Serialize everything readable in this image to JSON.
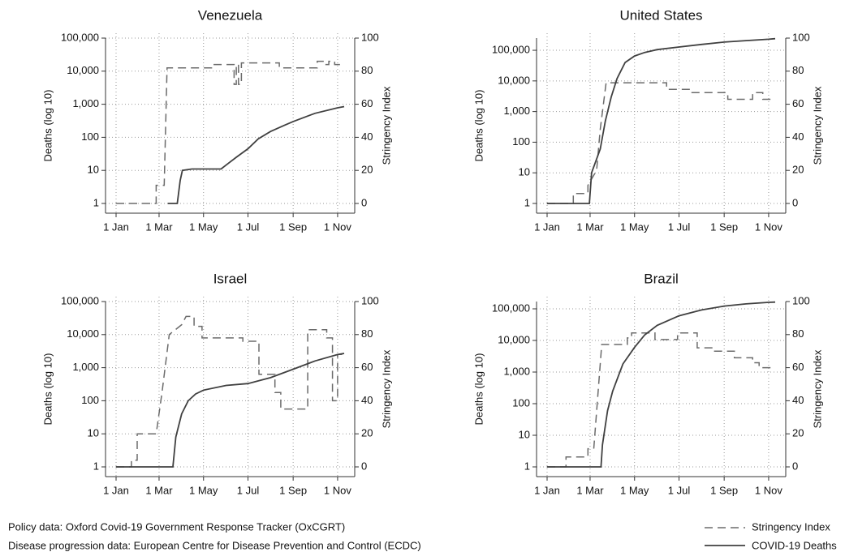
{
  "chart_data": [
    {
      "type": "line",
      "title": "Venezuela",
      "ylabel": "Deaths (log 10)",
      "y2label": "Stringency Index",
      "ylog": true,
      "grid": true,
      "xlim": [
        "1 Jan",
        "10 Nov"
      ],
      "xticks": [
        "1 Jan",
        "1 Mar",
        "1 May",
        "1 Jul",
        "1 Sep",
        "1 Nov"
      ],
      "ylim": [
        1,
        100000
      ],
      "yticks": [
        1,
        10,
        100,
        {
          "value": 1000,
          "label": "1,000"
        },
        {
          "value": 10000,
          "label": "10,000"
        },
        {
          "value": 100000,
          "label": "100,000"
        }
      ],
      "y2lim": [
        0,
        100
      ],
      "y2ticks": [
        0,
        20,
        40,
        60,
        80,
        100
      ],
      "series": [
        {
          "name": "Stringency Index",
          "color": "#6b6b6b",
          "dashed": true,
          "axis": "y2",
          "x": [
            "1 Jan",
            "25 Feb",
            "25 Feb",
            "8 Mar",
            "12 Mar",
            "12 May",
            "12 May",
            "12 Jun",
            "12 Jun",
            "15 Jun",
            "15 Jun",
            "18 Jun",
            "18 Jun",
            "22 Jun",
            "22 Jun",
            "13 Aug",
            "13 Aug",
            "4 Oct",
            "4 Oct",
            "14 Oct",
            "14 Oct",
            "20 Oct",
            "20 Oct",
            "28 Oct",
            "28 Oct",
            "10 Nov"
          ],
          "values": [
            0,
            0,
            11,
            11,
            82,
            82,
            84,
            84,
            72,
            72,
            84,
            84,
            72,
            72,
            85,
            85,
            82,
            82,
            86,
            86,
            84,
            84,
            86,
            86,
            84,
            84
          ]
        },
        {
          "name": "COVID-19 Deaths",
          "color": "#404040",
          "dashed": false,
          "x": [
            "13 Mar",
            "26 Mar",
            "30 Mar",
            "2 Apr",
            "15 Apr",
            "25 May",
            "5 Jun",
            "15 Jun",
            "1 Jul",
            "15 Jul",
            "1 Aug",
            "20 Aug",
            "1 Sep",
            "1 Oct",
            "1 Nov",
            "10 Nov"
          ],
          "values": [
            1,
            1,
            5,
            10,
            11,
            11,
            17,
            25,
            45,
            90,
            150,
            230,
            300,
            530,
            780,
            850
          ]
        }
      ]
    },
    {
      "type": "line",
      "title": "United States",
      "ylabel": "Deaths (log 10)",
      "y2label": "Stringency Index",
      "ylog": true,
      "grid": true,
      "xlim": [
        "1 Jan",
        "10 Nov"
      ],
      "xticks": [
        "1 Jan",
        "1 Mar",
        "1 May",
        "1 Jul",
        "1 Sep",
        "1 Nov"
      ],
      "ylim": [
        1,
        250000
      ],
      "yticks": [
        1,
        10,
        100,
        {
          "value": 1000,
          "label": "1,000"
        },
        {
          "value": 10000,
          "label": "10,000"
        },
        {
          "value": 100000,
          "label": "100,000"
        }
      ],
      "y2lim": [
        0,
        100
      ],
      "y2ticks": [
        0,
        20,
        40,
        60,
        80,
        100
      ],
      "series": [
        {
          "name": "Stringency Index",
          "color": "#6b6b6b",
          "dashed": true,
          "axis": "y2",
          "x": [
            "1 Jan",
            "6 Feb",
            "6 Feb",
            "26 Feb",
            "26 Feb",
            "10 Mar",
            "15 Mar",
            "23 Mar",
            "14 Jun",
            "14 Jun",
            "15 Jul",
            "15 Jul",
            "6 Sep",
            "6 Sep",
            "10 Oct",
            "10 Oct",
            "24 Oct",
            "24 Oct",
            "10 Nov"
          ],
          "values": [
            0,
            0,
            6,
            6,
            11,
            20,
            45,
            73,
            73,
            69,
            69,
            67,
            67,
            63,
            63,
            67,
            67,
            63,
            63
          ]
        },
        {
          "name": "COVID-19 Deaths",
          "color": "#404040",
          "dashed": false,
          "x": [
            "1 Jan",
            "28 Feb",
            "3 Mar",
            "15 Mar",
            "22 Mar",
            "30 Mar",
            "7 Apr",
            "18 Apr",
            "1 May",
            "15 May",
            "1 Jun",
            "1 Jul",
            "1 Aug",
            "1 Sep",
            "1 Oct",
            "1 Nov",
            "10 Nov"
          ],
          "values": [
            1,
            1,
            10,
            60,
            500,
            3000,
            12000,
            40000,
            65000,
            85000,
            105000,
            128000,
            155000,
            185000,
            207000,
            230000,
            240000
          ]
        }
      ]
    },
    {
      "type": "line",
      "title": "Israel",
      "ylabel": "Deaths (log 10)",
      "y2label": "Stringency Index",
      "ylog": true,
      "grid": true,
      "xlim": [
        "1 Jan",
        "10 Nov"
      ],
      "xticks": [
        "1 Jan",
        "1 Mar",
        "1 May",
        "1 Jul",
        "1 Sep",
        "1 Nov"
      ],
      "ylim": [
        1,
        100000
      ],
      "yticks": [
        1,
        10,
        100,
        {
          "value": 1000,
          "label": "1,000"
        },
        {
          "value": 10000,
          "label": "10,000"
        },
        {
          "value": 100000,
          "label": "100,000"
        }
      ],
      "y2lim": [
        0,
        100
      ],
      "y2ticks": [
        0,
        20,
        40,
        60,
        80,
        100
      ],
      "series": [
        {
          "name": "Stringency Index",
          "color": "#6b6b6b",
          "dashed": true,
          "axis": "y2",
          "x": [
            "1 Jan",
            "22 Jan",
            "22 Jan",
            "30 Jan",
            "30 Jan",
            "25 Feb",
            "5 Mar",
            "15 Mar",
            "1 Apr",
            "7 Apr",
            "18 Apr",
            "18 Apr",
            "29 Apr",
            "29 Apr",
            "24 Jun",
            "24 Jun",
            "16 Jul",
            "16 Jul",
            "7 Aug",
            "7 Aug",
            "15 Aug",
            "15 Aug",
            "21 Sep",
            "21 Sep",
            "17 Oct",
            "17 Oct",
            "25 Oct",
            "25 Oct",
            "1 Nov",
            "1 Nov",
            "10 Nov"
          ],
          "values": [
            0,
            0,
            4,
            4,
            20,
            20,
            45,
            80,
            86,
            91,
            91,
            85,
            85,
            78,
            78,
            76,
            76,
            56,
            56,
            45,
            45,
            35,
            35,
            83,
            83,
            78,
            78,
            40,
            40,
            68,
            68
          ]
        },
        {
          "name": "COVID-19 Deaths",
          "color": "#404040",
          "dashed": false,
          "x": [
            "1 Jan",
            "20 Mar",
            "24 Mar",
            "1 Apr",
            "10 Apr",
            "20 Apr",
            "1 May",
            "1 Jun",
            "1 Jul",
            "1 Aug",
            "1 Sep",
            "1 Oct",
            "1 Nov",
            "10 Nov"
          ],
          "values": [
            1,
            1,
            8,
            40,
            100,
            160,
            210,
            290,
            330,
            500,
            900,
            1600,
            2500,
            2700
          ]
        }
      ]
    },
    {
      "type": "line",
      "title": "Brazil",
      "ylabel": "Deaths (log 10)",
      "y2label": "Stringency Index",
      "ylog": true,
      "grid": true,
      "xlim": [
        "1 Jan",
        "10 Nov"
      ],
      "xticks": [
        "1 Jan",
        "1 Mar",
        "1 May",
        "1 Jul",
        "1 Sep",
        "1 Nov"
      ],
      "ylim": [
        1,
        170000
      ],
      "yticks": [
        1,
        10,
        100,
        {
          "value": 1000,
          "label": "1,000"
        },
        {
          "value": 10000,
          "label": "10,000"
        },
        {
          "value": 100000,
          "label": "100,000"
        }
      ],
      "y2lim": [
        0,
        100
      ],
      "y2ticks": [
        0,
        20,
        40,
        60,
        80,
        100
      ],
      "series": [
        {
          "name": "Stringency Index",
          "color": "#6b6b6b",
          "dashed": true,
          "axis": "y2",
          "x": [
            "1 Jan",
            "27 Jan",
            "27 Jan",
            "26 Feb",
            "26 Feb",
            "6 Mar",
            "17 Mar",
            "21 Apr",
            "21 Apr",
            "27 Apr",
            "27 Apr",
            "29 May",
            "29 May",
            "29 Jun",
            "29 Jun",
            "26 Jul",
            "26 Jul",
            "18 Aug",
            "18 Aug",
            "15 Sep",
            "15 Sep",
            "10 Oct",
            "10 Oct",
            "19 Oct",
            "19 Oct",
            "10 Nov"
          ],
          "values": [
            0,
            0,
            6,
            6,
            11,
            11,
            74,
            74,
            78,
            78,
            81,
            81,
            77,
            77,
            81,
            81,
            72,
            72,
            70,
            70,
            66,
            66,
            63,
            63,
            60,
            60
          ]
        },
        {
          "name": "COVID-19 Deaths",
          "color": "#404040",
          "dashed": false,
          "x": [
            "1 Jan",
            "16 Mar",
            "18 Mar",
            "25 Mar",
            "1 Apr",
            "15 Apr",
            "1 May",
            "15 May",
            "1 Jun",
            "1 Jul",
            "1 Aug",
            "1 Sep",
            "1 Oct",
            "1 Nov",
            "10 Nov"
          ],
          "values": [
            1,
            1,
            5,
            60,
            250,
            1800,
            6000,
            15000,
            30000,
            60000,
            92000,
            122000,
            143000,
            160000,
            163000
          ]
        }
      ]
    }
  ],
  "notes": [
    "Policy data: Oxford Covid-19 Government Response Tracker (OxCGRT)",
    "Disease progression data: European Centre for Disease Prevention and Control (ECDC)"
  ]
}
